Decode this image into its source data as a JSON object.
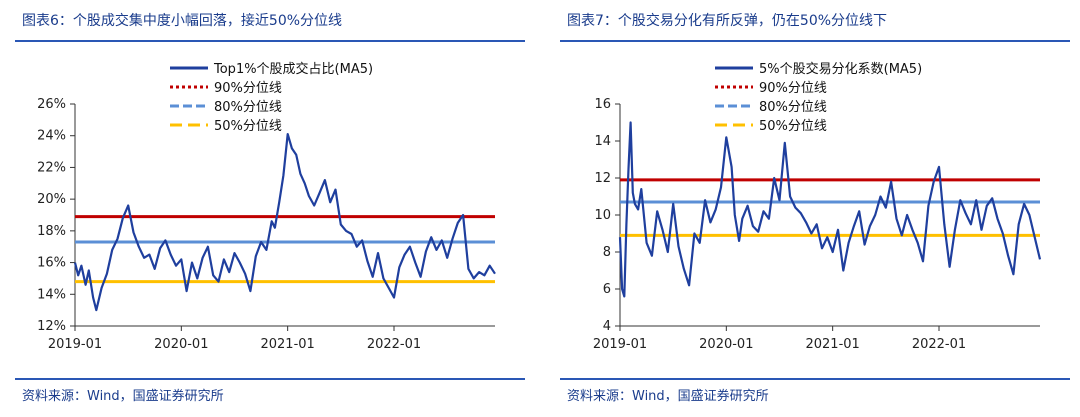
{
  "colors": {
    "series": "#1f3f9e",
    "p90": "#c00000",
    "p80": "#5b8fd6",
    "p50": "#ffc000",
    "title": "#1a3c8c",
    "rule": "#2a57b5"
  },
  "charts": [
    {
      "title": "图表6：个股成交集中度小幅回落，接近50%分位线",
      "source": "资料来源：Wind，国盛证券研究所"
    },
    {
      "title": "图表7：个股交易分化有所反弹，仍在50%分位线下",
      "source": "资料来源：Wind，国盛证券研究所"
    }
  ],
  "chart_data": [
    {
      "type": "line",
      "y_unit": "%",
      "ylim": [
        12,
        26
      ],
      "yticks": [
        "12%",
        "14%",
        "16%",
        "18%",
        "20%",
        "22%",
        "24%",
        "26%"
      ],
      "xlabels": [
        "2019-01",
        "2020-01",
        "2021-01",
        "2022-01"
      ],
      "x_range": [
        2019.0,
        2022.95
      ],
      "legend_placement": "top-center",
      "series": [
        {
          "name": "Top1%个股成交占比(MA5)",
          "x": [
            2019.0,
            2019.03,
            2019.06,
            2019.1,
            2019.13,
            2019.17,
            2019.2,
            2019.25,
            2019.3,
            2019.35,
            2019.4,
            2019.45,
            2019.5,
            2019.55,
            2019.6,
            2019.65,
            2019.7,
            2019.75,
            2019.8,
            2019.85,
            2019.9,
            2019.95,
            2020.0,
            2020.05,
            2020.1,
            2020.15,
            2020.2,
            2020.25,
            2020.3,
            2020.35,
            2020.4,
            2020.45,
            2020.5,
            2020.55,
            2020.6,
            2020.65,
            2020.7,
            2020.75,
            2020.8,
            2020.85,
            2020.88,
            2020.92,
            2020.96,
            2021.0,
            2021.04,
            2021.08,
            2021.12,
            2021.16,
            2021.2,
            2021.25,
            2021.3,
            2021.35,
            2021.4,
            2021.45,
            2021.5,
            2021.55,
            2021.6,
            2021.65,
            2021.7,
            2021.75,
            2021.8,
            2021.85,
            2021.9,
            2021.95,
            2022.0,
            2022.05,
            2022.1,
            2022.15,
            2022.2,
            2022.25,
            2022.3,
            2022.35,
            2022.4,
            2022.45,
            2022.5,
            2022.55,
            2022.6,
            2022.65,
            2022.7,
            2022.75,
            2022.8,
            2022.85,
            2022.9,
            2022.95
          ],
          "values": [
            16.0,
            15.2,
            15.8,
            14.6,
            15.5,
            13.8,
            13.0,
            14.4,
            15.3,
            16.8,
            17.5,
            18.8,
            19.6,
            17.9,
            17.0,
            16.3,
            16.5,
            15.6,
            16.9,
            17.4,
            16.5,
            15.8,
            16.2,
            14.2,
            16.0,
            15.0,
            16.3,
            17.0,
            15.2,
            14.8,
            16.2,
            15.4,
            16.6,
            16.0,
            15.3,
            14.2,
            16.4,
            17.3,
            16.8,
            18.6,
            18.2,
            19.8,
            21.5,
            24.1,
            23.2,
            22.8,
            21.6,
            21.0,
            20.2,
            19.6,
            20.4,
            21.2,
            19.8,
            20.6,
            18.4,
            18.0,
            17.8,
            17.0,
            17.4,
            16.1,
            15.1,
            16.6,
            15.0,
            14.4,
            13.8,
            15.7,
            16.5,
            17.0,
            16.0,
            15.1,
            16.7,
            17.6,
            16.8,
            17.4,
            16.3,
            17.5,
            18.5,
            19.0,
            15.6,
            15.0,
            15.4,
            15.2,
            15.8,
            15.3
          ]
        },
        {
          "name": "90%分位线",
          "value": 18.9
        },
        {
          "name": "80%分位线",
          "value": 17.3
        },
        {
          "name": "50%分位线",
          "value": 14.8
        }
      ]
    },
    {
      "type": "line",
      "ylim": [
        4,
        16
      ],
      "yticks": [
        "4",
        "6",
        "8",
        "10",
        "12",
        "14",
        "16"
      ],
      "xlabels": [
        "2019-01",
        "2020-01",
        "2021-01",
        "2022-01"
      ],
      "x_range": [
        2019.0,
        2022.95
      ],
      "legend_placement": "top-center",
      "series": [
        {
          "name": "5%个股交易分化系数(MA5)",
          "x": [
            2019.0,
            2019.02,
            2019.04,
            2019.06,
            2019.08,
            2019.1,
            2019.12,
            2019.14,
            2019.17,
            2019.2,
            2019.25,
            2019.3,
            2019.35,
            2019.4,
            2019.45,
            2019.5,
            2019.55,
            2019.6,
            2019.65,
            2019.7,
            2019.75,
            2019.8,
            2019.85,
            2019.9,
            2019.95,
            2020.0,
            2020.05,
            2020.08,
            2020.12,
            2020.15,
            2020.2,
            2020.25,
            2020.3,
            2020.35,
            2020.4,
            2020.45,
            2020.5,
            2020.55,
            2020.6,
            2020.65,
            2020.7,
            2020.75,
            2020.8,
            2020.85,
            2020.9,
            2020.95,
            2021.0,
            2021.05,
            2021.1,
            2021.15,
            2021.2,
            2021.25,
            2021.3,
            2021.35,
            2021.4,
            2021.45,
            2021.5,
            2021.55,
            2021.6,
            2021.65,
            2021.7,
            2021.75,
            2021.8,
            2021.85,
            2021.9,
            2021.95,
            2022.0,
            2022.05,
            2022.1,
            2022.15,
            2022.2,
            2022.25,
            2022.3,
            2022.35,
            2022.4,
            2022.45,
            2022.5,
            2022.55,
            2022.6,
            2022.65,
            2022.7,
            2022.75,
            2022.8,
            2022.85,
            2022.9,
            2022.95
          ],
          "values": [
            8.8,
            6.0,
            5.6,
            9.5,
            12.5,
            15.0,
            11.2,
            10.6,
            10.3,
            11.4,
            8.5,
            7.8,
            10.2,
            9.2,
            8.0,
            10.6,
            8.3,
            7.1,
            6.2,
            9.0,
            8.5,
            10.8,
            9.6,
            10.3,
            11.5,
            14.2,
            12.6,
            10.0,
            8.6,
            9.8,
            10.5,
            9.4,
            9.1,
            10.2,
            9.8,
            12.0,
            10.8,
            13.9,
            11.0,
            10.4,
            10.1,
            9.6,
            9.0,
            9.5,
            8.2,
            8.8,
            8.0,
            9.2,
            7.0,
            8.5,
            9.4,
            10.2,
            8.4,
            9.4,
            10.0,
            11.0,
            10.4,
            11.8,
            9.8,
            8.9,
            10.0,
            9.2,
            8.5,
            7.5,
            10.5,
            11.8,
            12.6,
            9.5,
            7.2,
            9.2,
            10.8,
            10.1,
            9.5,
            10.8,
            9.2,
            10.5,
            10.9,
            9.8,
            9.0,
            7.8,
            6.8,
            9.5,
            10.6,
            10.0,
            8.8,
            7.6
          ]
        },
        {
          "name": "90%分位线",
          "value": 11.9
        },
        {
          "name": "80%分位线",
          "value": 10.7
        },
        {
          "name": "50%分位线",
          "value": 8.9
        }
      ]
    }
  ]
}
